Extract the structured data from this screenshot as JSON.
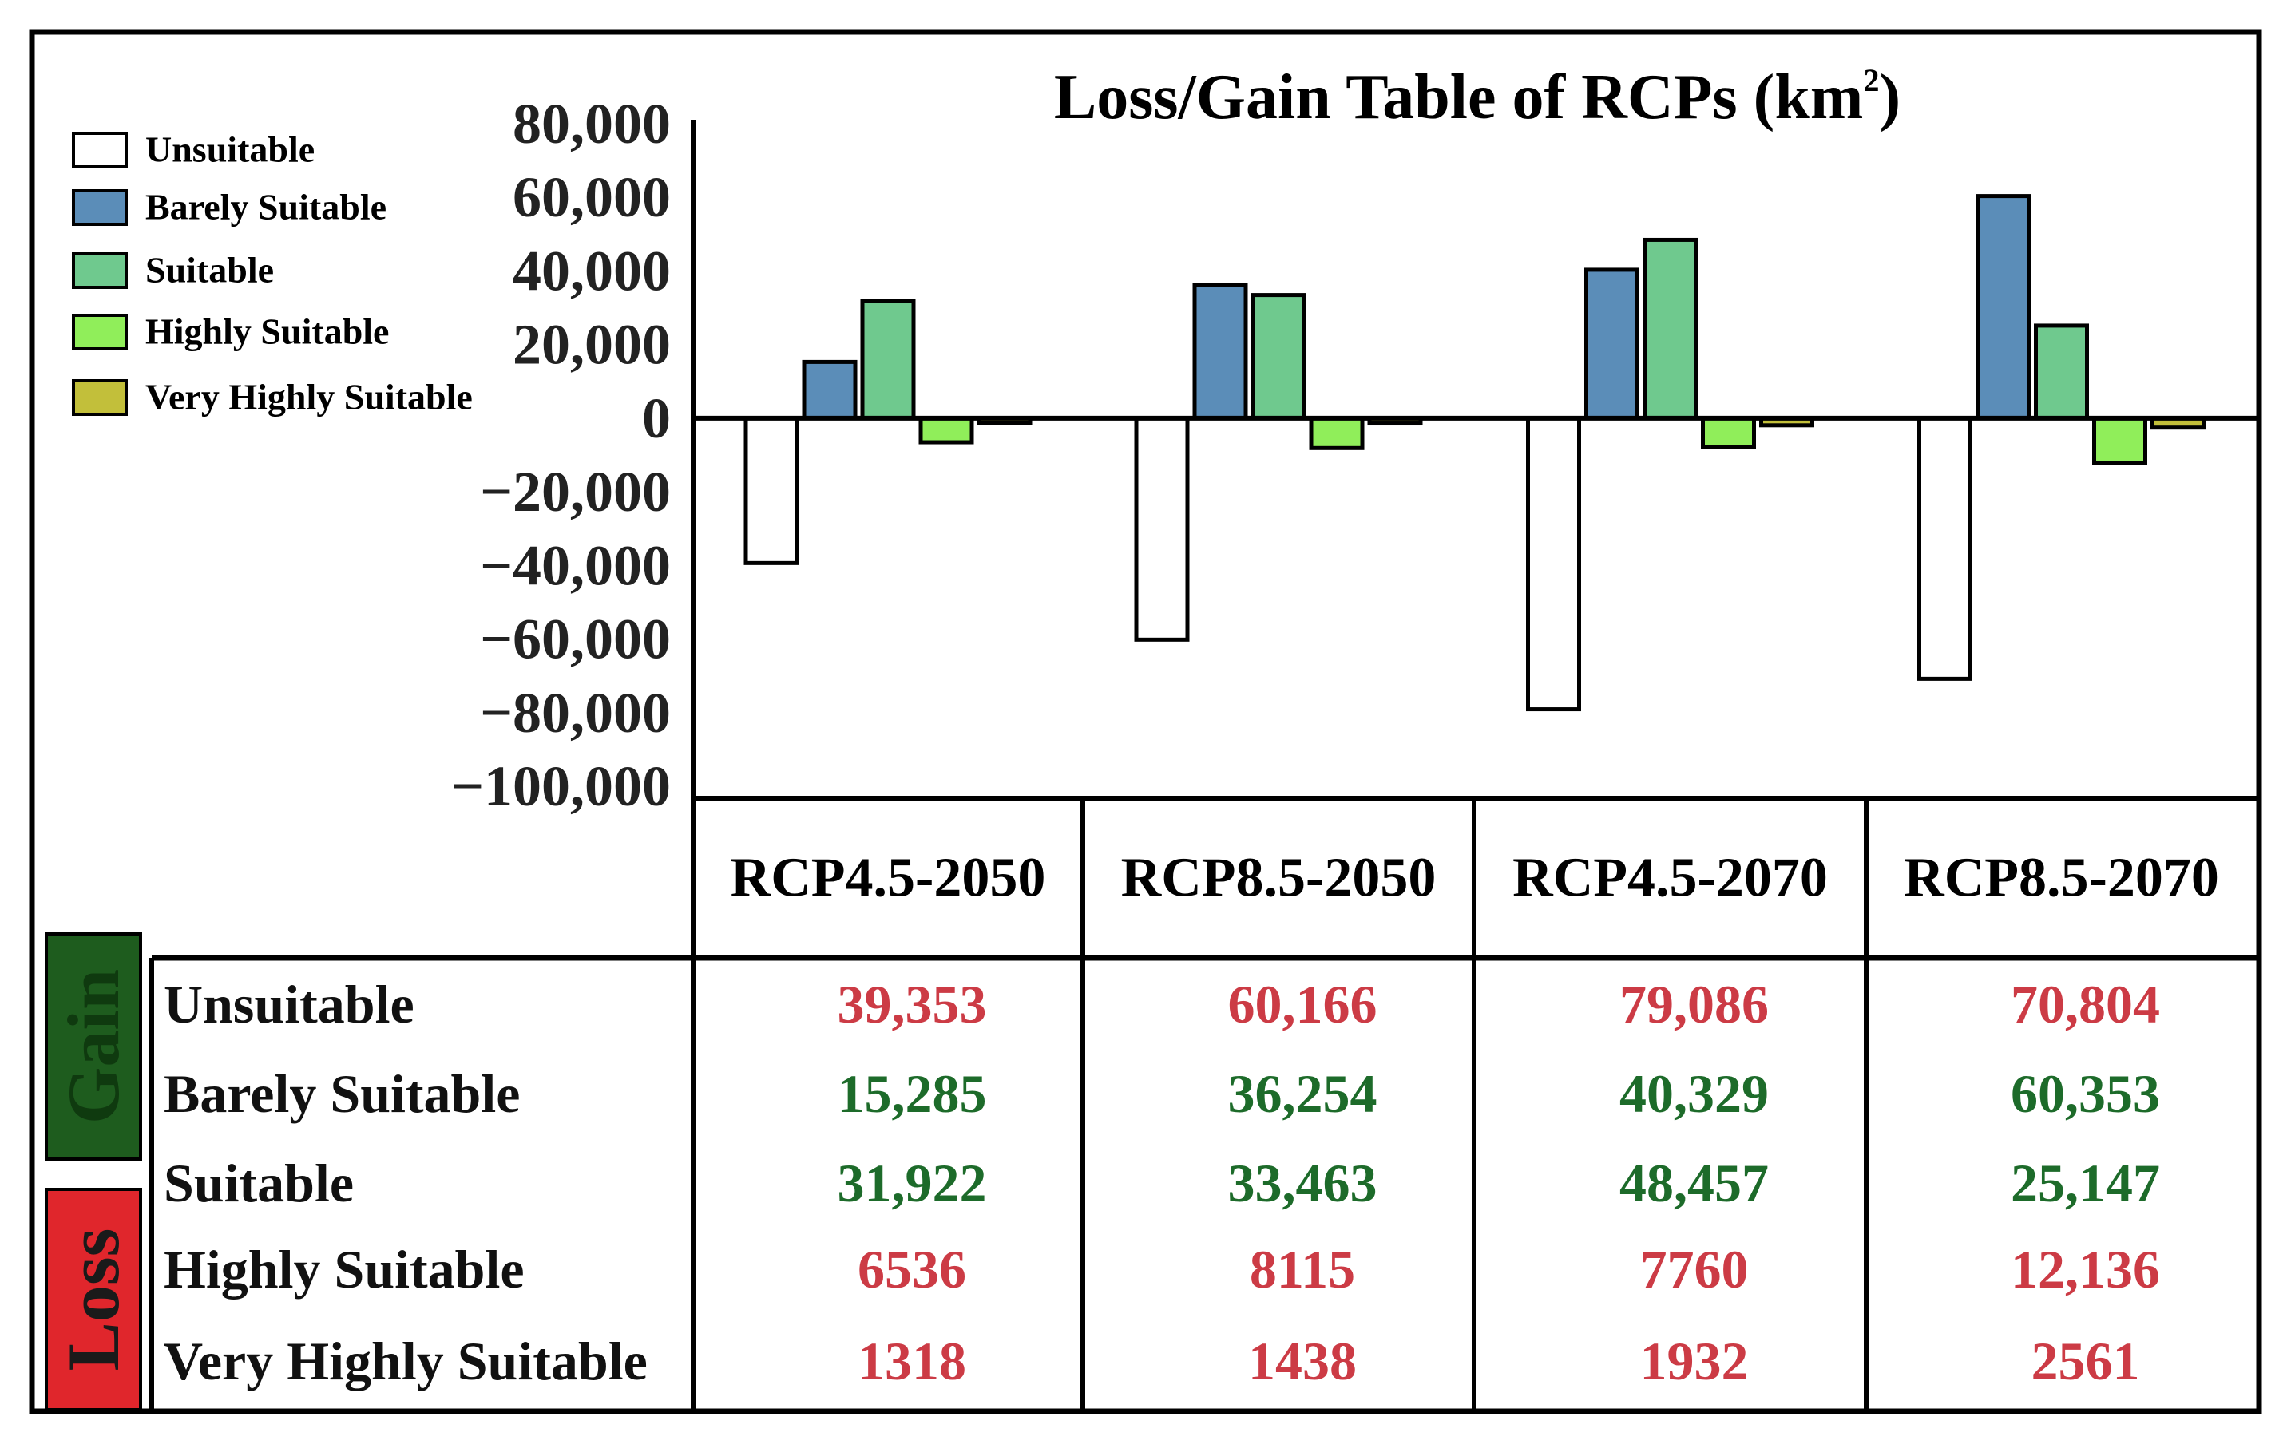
{
  "chart_data": {
    "type": "bar",
    "title": "Loss/Gain Table of RCPs (km²)",
    "title_main": "Loss/Gain Table of RCPs (km",
    "title_sup": "2",
    "title_close": ")",
    "categories": [
      "RCP4.5-2050",
      "RCP8.5-2050",
      "RCP4.5-2070",
      "RCP8.5-2070"
    ],
    "ylim": [
      -100000,
      80000
    ],
    "yticks": [
      80000,
      60000,
      40000,
      20000,
      0,
      -20000,
      -40000,
      -60000,
      -80000,
      -100000
    ],
    "ytick_labels": [
      "80,000",
      "60,000",
      "40,000",
      "20,000",
      "0",
      "−20,000",
      "−40,000",
      "−60,000",
      "−80,000",
      "−100,000"
    ],
    "grid": false,
    "legend_position": "top-left",
    "series": [
      {
        "name": "Unsuitable",
        "color": "#ffffff",
        "values": [
          -39353,
          -60166,
          -79086,
          -70804
        ]
      },
      {
        "name": "Barely Suitable",
        "color": "#5b8db8",
        "values": [
          15285,
          36254,
          40329,
          60353
        ]
      },
      {
        "name": "Suitable",
        "color": "#6fc98e",
        "values": [
          31922,
          33463,
          48457,
          25147
        ]
      },
      {
        "name": "Highly Suitable",
        "color": "#90ee5a",
        "values": [
          -6536,
          -8115,
          -7760,
          -12136
        ]
      },
      {
        "name": "Very Highly Suitable",
        "color": "#c2bf3a",
        "values": [
          -1318,
          -1438,
          -1932,
          -2561
        ]
      }
    ]
  },
  "table": {
    "side_labels": {
      "gain": "Gain",
      "gain_bg": "#1e5c1e",
      "gain_text": "#0f3a0f",
      "loss": "Loss",
      "loss_bg": "#e0262c",
      "loss_text": "#1a1a1a"
    },
    "rows": [
      {
        "label": "Unsuitable",
        "color": "#cc3b45",
        "cells": [
          "39,353",
          "60,166",
          "79,086",
          "70,804"
        ]
      },
      {
        "label": "Barely Suitable",
        "color": "#1d6b2a",
        "cells": [
          "15,285",
          "36,254",
          "40,329",
          "60,353"
        ]
      },
      {
        "label": "Suitable",
        "color": "#1d6b2a",
        "cells": [
          "31,922",
          "33,463",
          "48,457",
          "25,147"
        ]
      },
      {
        "label": "Highly Suitable",
        "color": "#cc3b45",
        "cells": [
          "6536",
          "8115",
          "7760",
          "12,136"
        ]
      },
      {
        "label": "Very Highly Suitable",
        "color": "#cc3b45",
        "cells": [
          "1318",
          "1438",
          "1932",
          "2561"
        ]
      }
    ]
  }
}
